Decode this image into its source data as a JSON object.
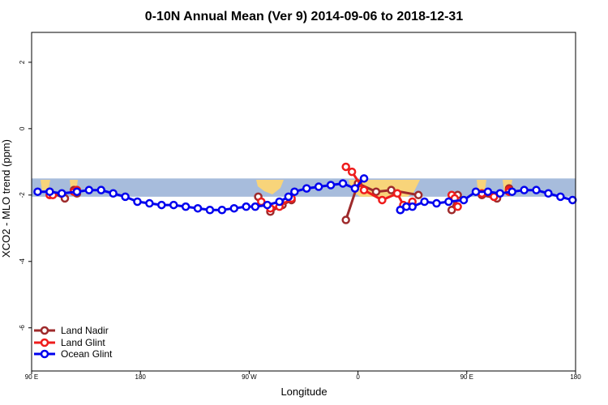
{
  "chart_data": {
    "type": "line",
    "title": "0-10N Annual Mean (Ver 9)   2014-09-06 to 2018-12-31",
    "xlabel": "Longitude",
    "ylabel": "XCO2 - MLO trend (ppm)",
    "xlim": [
      0,
      450
    ],
    "ylim": [
      -7.3,
      2.9
    ],
    "x_ticks": [
      {
        "value": 0,
        "label": "90 E"
      },
      {
        "value": 90,
        "label": "180"
      },
      {
        "value": 180,
        "label": "90 W"
      },
      {
        "value": 270,
        "label": "0"
      },
      {
        "value": 360,
        "label": "90 E"
      },
      {
        "value": 450,
        "label": "180"
      }
    ],
    "y_ticks": [
      {
        "value": 2,
        "label": "2"
      },
      {
        "value": 0,
        "label": "0"
      },
      {
        "value": -2,
        "label": "-2"
      },
      {
        "value": -4,
        "label": "-4"
      },
      {
        "value": -6,
        "label": "-6"
      }
    ],
    "grid": false,
    "legend_position": "bottom-left",
    "band": {
      "y0": -2.05,
      "y1": -1.5,
      "color": "#a7bcdc"
    },
    "land_color": "#f8d47a",
    "series": [
      {
        "name": "Land Nadir",
        "color": "#9e2a2b",
        "segments": [
          {
            "x": [
              15,
              27.5
            ],
            "y": [
              -1.9,
              -2.1
            ]
          },
          {
            "x": [
              35,
              37.5
            ],
            "y": [
              -1.85,
              -1.95
            ]
          },
          {
            "x": [
              187.5,
              197.5,
              207.5,
              215
            ],
            "y": [
              -2.05,
              -2.5,
              -2.3,
              -2.15
            ]
          },
          {
            "x": [
              260,
              270,
              285,
              297.5,
              320
            ],
            "y": [
              -2.75,
              -1.65,
              -1.9,
              -1.85,
              -2.0
            ]
          },
          {
            "x": [
              347.5,
              352.5
            ],
            "y": [
              -2.45,
              -2.0
            ]
          },
          {
            "x": [
              372.5,
              385
            ],
            "y": [
              -2.0,
              -2.1
            ]
          },
          {
            "x": [
              395,
              395
            ],
            "y": [
              -1.8,
              -1.85
            ]
          }
        ]
      },
      {
        "name": "Land Glint",
        "color": "#ee1c1c",
        "segments": [
          {
            "x": [
              15,
              17.5
            ],
            "y": [
              -2.0,
              -2.0
            ]
          },
          {
            "x": [
              35,
              37.5
            ],
            "y": [
              -1.9,
              -1.85
            ]
          },
          {
            "x": [
              190,
              197.5,
              205,
              215
            ],
            "y": [
              -2.2,
              -2.4,
              -2.35,
              -2.1
            ]
          },
          {
            "x": [
              260,
              265,
              275,
              290,
              302.5,
              307.5,
              315
            ],
            "y": [
              -1.15,
              -1.3,
              -1.85,
              -2.15,
              -1.95,
              -2.3,
              -2.2
            ]
          },
          {
            "x": [
              347.5,
              352.5,
              350
            ],
            "y": [
              -2.0,
              -2.35,
              -2.1
            ]
          },
          {
            "x": [
              372.5,
              382.5
            ],
            "y": [
              -1.95,
              -2.05
            ]
          },
          {
            "x": [
              395,
              395
            ],
            "y": [
              -1.85,
              -1.9
            ]
          }
        ]
      },
      {
        "name": "Ocean Glint",
        "color": "#0000ee",
        "segments": [
          {
            "x": [
              5,
              15,
              25,
              37.5,
              47.5,
              57.5,
              67.5,
              77.5,
              87.5,
              97.5,
              107.5,
              117.5,
              127.5,
              137.5,
              147.5,
              157.5,
              167.5,
              177.5,
              185,
              195,
              205,
              212.5,
              217.5,
              227.5,
              237.5,
              247.5,
              257.5,
              267.5,
              275
            ],
            "y": [
              -1.9,
              -1.9,
              -1.95,
              -1.9,
              -1.85,
              -1.85,
              -1.95,
              -2.05,
              -2.2,
              -2.25,
              -2.3,
              -2.3,
              -2.35,
              -2.4,
              -2.45,
              -2.45,
              -2.4,
              -2.35,
              -2.35,
              -2.3,
              -2.2,
              -2.05,
              -1.9,
              -1.8,
              -1.75,
              -1.7,
              -1.65,
              -1.8,
              -1.5
            ]
          },
          {
            "x": [
              305,
              315,
              325,
              335,
              345,
              357.5,
              367.5,
              377.5,
              387.5,
              397.5,
              407.5,
              417.5,
              427.5,
              437.5,
              447.5
            ],
            "y": [
              -2.45,
              -2.35,
              -2.2,
              -2.25,
              -2.2,
              -2.15,
              -1.9,
              -1.9,
              -1.95,
              -1.9,
              -1.85,
              -1.85,
              -1.95,
              -2.05,
              -2.15
            ]
          },
          {
            "x": [
              305,
              310
            ],
            "y": [
              -2.45,
              -2.35
            ]
          }
        ]
      }
    ]
  },
  "legend": [
    {
      "label": "Land Nadir",
      "color": "#9e2a2b"
    },
    {
      "label": "Land Glint",
      "color": "#ee1c1c"
    },
    {
      "label": "Ocean Glint",
      "color": "#0000ee"
    }
  ]
}
